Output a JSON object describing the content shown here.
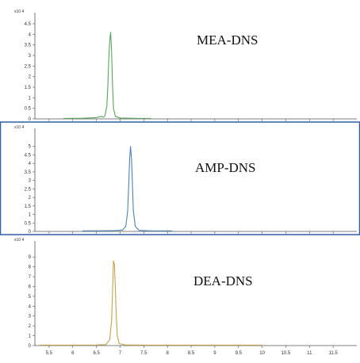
{
  "chart_data": [
    {
      "type": "line",
      "title": "",
      "label": "MEA-DNS",
      "exponent_label": "x10 4",
      "color": "#5aa55a",
      "ylim": [
        0,
        4.5
      ],
      "y_ticks": [
        "0",
        "0.5",
        "1",
        "1.5",
        "2",
        "2.5",
        "3",
        "3.5",
        "4",
        "4.5"
      ],
      "x_range": [
        5.8,
        7.65
      ],
      "x": [
        5.8,
        6.2,
        6.5,
        6.6,
        6.65,
        6.68,
        6.72,
        6.74,
        6.76,
        6.78,
        6.8,
        6.82,
        6.84,
        6.86,
        6.9,
        7.0,
        7.2,
        7.4,
        7.65
      ],
      "y": [
        0.02,
        0.03,
        0.06,
        0.12,
        0.08,
        0.15,
        0.6,
        1.5,
        2.8,
        3.7,
        4.1,
        3.2,
        1.6,
        0.5,
        0.12,
        0.04,
        0.03,
        0.02,
        0.02
      ]
    },
    {
      "type": "line",
      "title": "",
      "label": "AMP-DNS",
      "exponent_label": "x10 4",
      "color": "#4d82b8",
      "ylim": [
        0,
        5.5
      ],
      "y_ticks": [
        "0",
        "0.5",
        "1",
        "1.5",
        "2",
        "2.5",
        "3",
        "3.5",
        "4",
        "4.5",
        "5"
      ],
      "x_range": [
        6.2,
        8.1
      ],
      "x": [
        6.2,
        6.6,
        6.9,
        7.05,
        7.12,
        7.16,
        7.18,
        7.2,
        7.22,
        7.24,
        7.26,
        7.28,
        7.32,
        7.4,
        7.6,
        7.9,
        8.1
      ],
      "y": [
        0.03,
        0.04,
        0.05,
        0.08,
        0.3,
        1.2,
        2.6,
        4.2,
        5.0,
        4.3,
        2.8,
        1.2,
        0.3,
        0.06,
        0.04,
        0.03,
        0.03
      ]
    },
    {
      "type": "line",
      "title": "",
      "label": "DEA-DNS",
      "exponent_label": "x10 4",
      "color": "#c8a24a",
      "ylim": [
        0,
        9.5
      ],
      "y_ticks": [
        "0",
        "1",
        "2",
        "3",
        "4",
        "5",
        "6",
        "7",
        "8",
        "9"
      ],
      "x_range": [
        5.3,
        10.0
      ],
      "x": [
        5.3,
        6.0,
        6.5,
        6.7,
        6.78,
        6.82,
        6.84,
        6.86,
        6.88,
        6.9,
        6.92,
        6.94,
        6.98,
        7.1,
        7.5,
        8.5,
        9.5,
        10.0
      ],
      "y": [
        0.05,
        0.05,
        0.06,
        0.1,
        0.6,
        2.5,
        5.5,
        8.6,
        8.2,
        5.8,
        2.9,
        1.0,
        0.2,
        0.07,
        0.05,
        0.05,
        0.05,
        0.05
      ],
      "x_ticks": [
        "5.5",
        "6",
        "6.5",
        "7",
        "7.5",
        "8",
        "8.5",
        "9",
        "9.5",
        "10",
        "10.5",
        "11",
        "11.5"
      ]
    }
  ],
  "shared_x": {
    "xlim": [
      5.2,
      12.0
    ],
    "tick_values": [
      5.5,
      6,
      6.5,
      7,
      7.5,
      8,
      8.5,
      9,
      9.5,
      10,
      10.5,
      11,
      11.5
    ]
  }
}
